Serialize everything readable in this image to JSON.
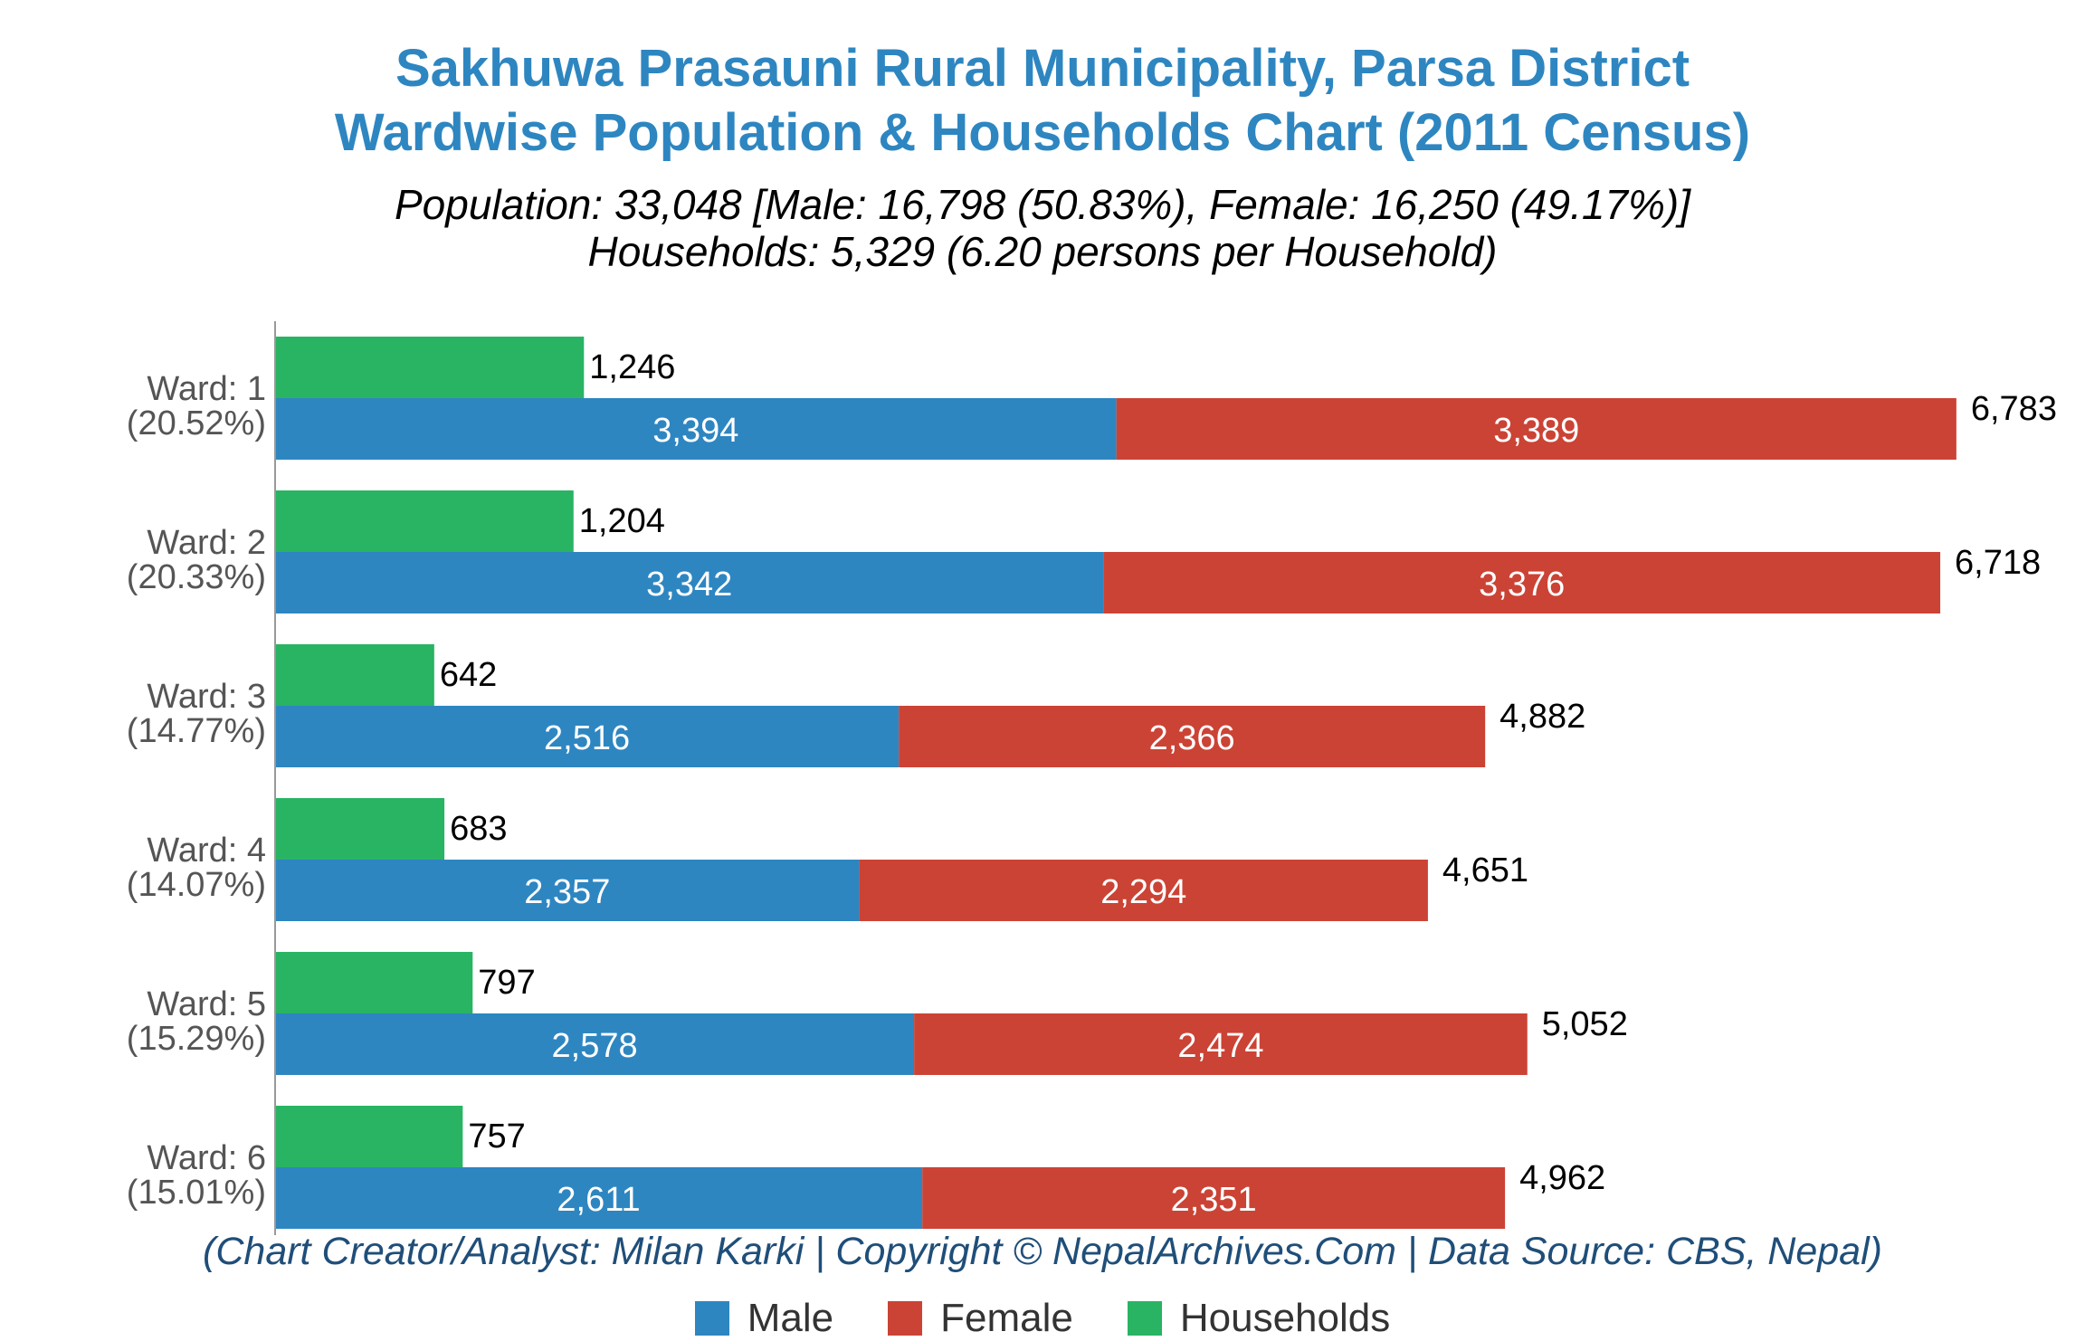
{
  "title_line1": "Sakhuwa Prasauni Rural Municipality, Parsa District",
  "title_line2": "Wardwise Population & Households Chart (2011 Census)",
  "subtitle_line1": "Population: 33,048 [Male: 16,798 (50.83%), Female: 16,250 (49.17%)]",
  "subtitle_line2": "Households: 5,329 (6.20 persons per Household)",
  "credit": "(Chart Creator/Analyst: Milan Karki | Copyright © NepalArchives.Com | Data Source: CBS, Nepal)",
  "colors": {
    "male": "#2e86c1",
    "female": "#cb4335",
    "households": "#28b463",
    "title": "#2e86c1",
    "credit": "#1f4e79"
  },
  "chart_data": {
    "type": "bar",
    "orientation": "horizontal",
    "stacked_series": [
      "Male",
      "Female"
    ],
    "categories": [
      "Ward: 1",
      "Ward: 2",
      "Ward: 3",
      "Ward: 4",
      "Ward: 5",
      "Ward: 6"
    ],
    "category_percent": [
      "(20.52%)",
      "(20.33%)",
      "(14.77%)",
      "(14.07%)",
      "(15.29%)",
      "(15.01%)"
    ],
    "series": [
      {
        "name": "Male",
        "values": [
          3394,
          3342,
          2516,
          2357,
          2578,
          2611
        ],
        "labels": [
          "3,394",
          "3,342",
          "2,516",
          "2,357",
          "2,578",
          "2,611"
        ]
      },
      {
        "name": "Female",
        "values": [
          3389,
          3376,
          2366,
          2294,
          2474,
          2351
        ],
        "labels": [
          "3,389",
          "3,376",
          "2,366",
          "2,294",
          "2,474",
          "2,351"
        ]
      },
      {
        "name": "Households",
        "values": [
          1246,
          1204,
          642,
          683,
          797,
          757
        ],
        "labels": [
          "1,246",
          "1,204",
          "642",
          "683",
          "797",
          "757"
        ]
      }
    ],
    "totals": [
      6783,
      6718,
      4882,
      4651,
      5052,
      4962
    ],
    "total_labels": [
      "6,783",
      "6,718",
      "4,882",
      "4,651",
      "5,052",
      "4,962"
    ],
    "legend": [
      "Male",
      "Female",
      "Households"
    ],
    "legend_position": "bottom",
    "grid": false
  }
}
